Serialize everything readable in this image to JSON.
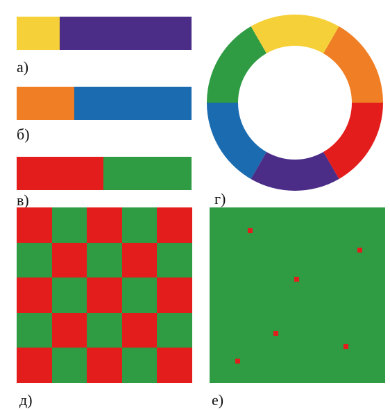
{
  "colors": {
    "yellow": "#f6d038",
    "purple": "#4b2d88",
    "orange": "#f07e24",
    "blue": "#1a6bb0",
    "red": "#e31c1c",
    "green": "#2f9b43"
  },
  "bars": [
    {
      "label": "а)",
      "left_color": "#f6d038",
      "right_color": "#4b2d88",
      "left_fraction": 0.247
    },
    {
      "label": "б)",
      "left_color": "#f07e24",
      "right_color": "#1a6bb0",
      "left_fraction": 0.33
    },
    {
      "label": "в)",
      "left_color": "#e31c1c",
      "right_color": "#2f9b43",
      "left_fraction": 0.498
    }
  ],
  "wheel": {
    "label": "г)",
    "segments": [
      {
        "name": "yellow",
        "color": "#f6d038"
      },
      {
        "name": "orange",
        "color": "#f07e24"
      },
      {
        "name": "red",
        "color": "#e31c1c"
      },
      {
        "name": "purple",
        "color": "#4b2d88"
      },
      {
        "name": "blue",
        "color": "#1a6bb0"
      },
      {
        "name": "green",
        "color": "#2f9b43"
      }
    ]
  },
  "checkerboard": {
    "label": "д)",
    "rows": 5,
    "cols": 5,
    "color_a": "#e31c1c",
    "color_b": "#2f9b43"
  },
  "dot_field": {
    "label": "е)",
    "background": "#2f9b43",
    "dot_color": "#e31c1c",
    "dot_count": 6
  }
}
